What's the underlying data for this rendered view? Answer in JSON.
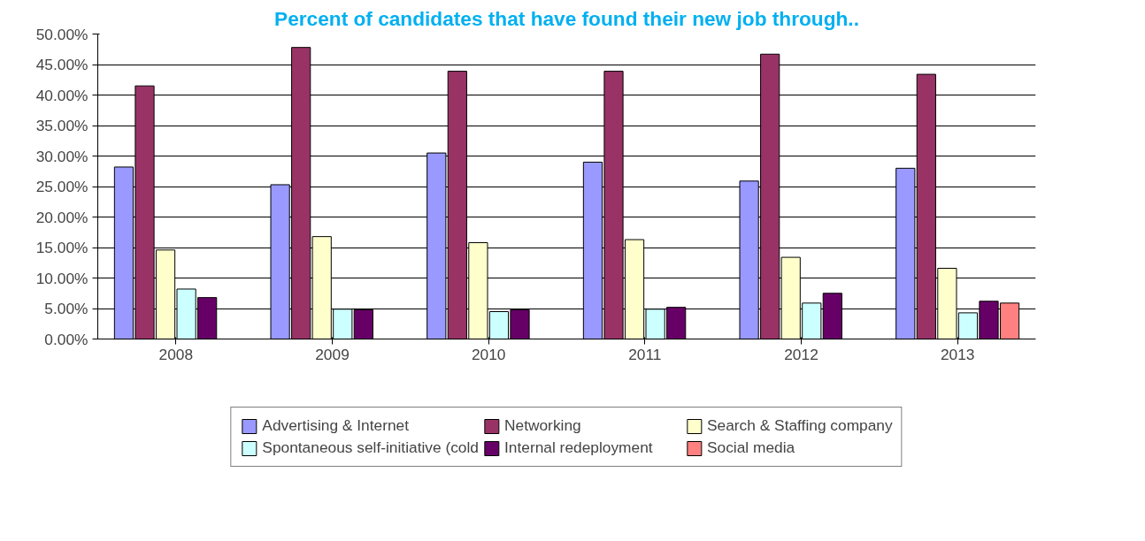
{
  "chart_data": {
    "type": "bar",
    "title": "Percent of candidates that have found their new job through..",
    "categories": [
      "2008",
      "2009",
      "2010",
      "2011",
      "2012",
      "2013"
    ],
    "series": [
      {
        "name": "Advertising & Internet",
        "color": "#9999ff",
        "values": [
          28.2,
          25.3,
          30.5,
          29.0,
          25.9,
          28.0
        ]
      },
      {
        "name": "Networking",
        "color": "#993366",
        "values": [
          41.5,
          47.8,
          43.9,
          43.9,
          46.7,
          43.4
        ]
      },
      {
        "name": "Search & Staffing company",
        "color": "#ffffcc",
        "values": [
          14.6,
          16.8,
          15.8,
          16.3,
          13.4,
          11.6
        ]
      },
      {
        "name": "Spontaneous self-initiative (cold",
        "color": "#ccffff",
        "values": [
          8.2,
          4.9,
          4.5,
          4.9,
          5.9,
          4.3
        ]
      },
      {
        "name": "Internal redeployment",
        "color": "#660066",
        "values": [
          6.8,
          4.8,
          4.8,
          5.2,
          7.5,
          6.2
        ]
      },
      {
        "name": "Social media",
        "color": "#ff8080",
        "values": [
          null,
          null,
          null,
          null,
          null,
          5.9
        ]
      }
    ],
    "ylim": [
      0,
      50
    ],
    "yticks": [
      {
        "value": 0,
        "label": "0.00%"
      },
      {
        "value": 5,
        "label": "5.00%"
      },
      {
        "value": 10,
        "label": "10.00%"
      },
      {
        "value": 15,
        "label": "15.00%"
      },
      {
        "value": 20,
        "label": "20.00%"
      },
      {
        "value": 25,
        "label": "25.00%"
      },
      {
        "value": 30,
        "label": "30.00%"
      },
      {
        "value": 35,
        "label": "35.00%"
      },
      {
        "value": 40,
        "label": "40.00%"
      },
      {
        "value": 45,
        "label": "45.00%"
      },
      {
        "value": 50,
        "label": "50.00%"
      }
    ],
    "grid": "y",
    "legend": "bottom"
  }
}
